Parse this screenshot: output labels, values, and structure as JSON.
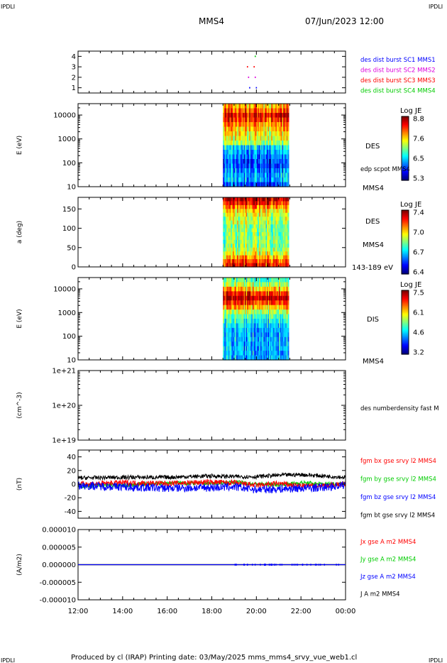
{
  "header": {
    "corner_tl": "IPDLI",
    "corner_tr": "IPDLI",
    "corner_bl": "IPDLI",
    "corner_br": "IPDLI",
    "title": "MMS4",
    "datetime": "07/Jun/2023 12:00"
  },
  "footer": {
    "text": "Produced by cl (IRAP)   Printing date: 03/May/2025   mms_mms4_srvy_vue_web1.cl"
  },
  "colors": {
    "mms1": "#0000ff",
    "mms2": "#dd00dd",
    "mms3": "#ff0000",
    "mms4": "#00cc00",
    "black": "#000000"
  },
  "chart_data": [
    {
      "type": "scatter",
      "panel": "burst availability",
      "ylabel": "",
      "yticks": [
        "1",
        "2",
        "3",
        "4"
      ],
      "ylim": [
        0.5,
        4.5
      ],
      "legend": [
        {
          "label": "des dist burst SC1 MMS1",
          "color": "#0000ff"
        },
        {
          "label": "des dist burst SC2 MMS2",
          "color": "#dd00dd"
        },
        {
          "label": "des dist burst SC3 MMS3",
          "color": "#ff0000"
        },
        {
          "label": "des dist burst SC4 MMS4",
          "color": "#00cc00"
        }
      ],
      "series": [
        {
          "sc": 1,
          "x": [
            19.7,
            20.0
          ]
        },
        {
          "sc": 2,
          "x": [
            19.65,
            19.95
          ]
        },
        {
          "sc": 3,
          "x": [
            19.6,
            19.9
          ]
        },
        {
          "sc": 4,
          "x": [
            19.95
          ]
        }
      ]
    },
    {
      "type": "heatmap",
      "panel": "DES energy spectrogram",
      "ylabel": "E (eV)",
      "yscale": "log",
      "ylim": [
        10,
        30000
      ],
      "yticks": [
        "10000",
        "1000",
        "100",
        "10"
      ],
      "side_labels": [
        "DES",
        "edp scpot MMS4",
        "MMS4"
      ],
      "colorbar": {
        "title": "Log JE",
        "ticks": [
          "8.8",
          "7.6",
          "6.5",
          "5.3"
        ],
        "min": 5.3,
        "max": 8.8
      },
      "time_range": [
        18.5,
        21.45
      ],
      "row_levels": [
        0.2,
        0.3,
        0.3,
        0.25,
        0.2,
        0.2,
        0.25,
        0.3,
        0.35,
        0.55,
        0.6,
        0.65,
        0.7,
        0.75,
        0.85,
        0.9,
        0.8,
        0.7
      ]
    },
    {
      "type": "heatmap",
      "panel": "DES pitch angle",
      "ylabel": "a (deg)",
      "ylim": [
        0,
        180
      ],
      "yticks": [
        "150",
        "100",
        "50",
        "0"
      ],
      "side_labels": [
        "DES",
        "MMS4",
        "143-189 eV"
      ],
      "colorbar": {
        "title": "Log JE",
        "ticks": [
          "7.4",
          "7.0",
          "6.7",
          "6.4"
        ],
        "min": 6.4,
        "max": 7.4
      },
      "time_range": [
        18.5,
        21.45
      ],
      "row_levels": [
        0.85,
        0.8,
        0.7,
        0.6,
        0.55,
        0.5,
        0.5,
        0.5,
        0.5,
        0.5,
        0.5,
        0.55,
        0.55,
        0.6,
        0.65,
        0.75,
        0.85,
        0.95
      ]
    },
    {
      "type": "heatmap",
      "panel": "DIS energy spectrogram",
      "ylabel": "E (eV)",
      "yscale": "log",
      "ylim": [
        10,
        30000
      ],
      "yticks": [
        "10000",
        "1000",
        "100",
        "10"
      ],
      "side_labels": [
        "DIS",
        "MMS4"
      ],
      "colorbar": {
        "title": "Log JE",
        "ticks": [
          "7.5",
          "6.1",
          "4.6",
          "3.2"
        ],
        "min": 3.2,
        "max": 7.5
      },
      "time_range": [
        18.5,
        21.45
      ],
      "row_levels": [
        0.3,
        0.3,
        0.3,
        0.3,
        0.3,
        0.3,
        0.3,
        0.35,
        0.4,
        0.45,
        0.55,
        0.7,
        0.85,
        0.95,
        0.85,
        0.7,
        0.55,
        0.45
      ]
    },
    {
      "type": "line",
      "panel": "electron number density",
      "ylabel": "(cm^-3)",
      "yscale": "log",
      "yticks": [
        "1e+21",
        "1e+20",
        "1e+19"
      ],
      "side_labels": [
        "des numberdensity fast M"
      ],
      "series": []
    },
    {
      "type": "line",
      "panel": "magnetic field",
      "ylabel": "(nT)",
      "ylim": [
        -50,
        50
      ],
      "yticks": [
        "40",
        "20",
        "0",
        "-20",
        "-40"
      ],
      "legend": [
        {
          "label": "fgm bx gse srvy l2 MMS4",
          "color": "#ff0000"
        },
        {
          "label": "fgm by gse srvy l2 MMS4",
          "color": "#00cc00"
        },
        {
          "label": "fgm bz gse srvy l2 MMS4",
          "color": "#0000ff"
        },
        {
          "label": "fgm bt gse srvy l2 MMS4",
          "color": "#000000"
        }
      ],
      "series": [
        {
          "name": "fgm bx gse srvy l2 MMS4",
          "x": [
            12,
            14,
            16,
            18,
            19,
            20,
            21,
            22,
            23,
            24
          ],
          "y": [
            0,
            2,
            1,
            3,
            2,
            -2,
            1,
            -3,
            -2,
            0
          ],
          "noise": 4
        },
        {
          "name": "fgm by gse srvy l2 MMS4",
          "x": [
            12,
            14,
            16,
            18,
            19,
            20,
            21,
            22,
            23,
            24
          ],
          "y": [
            -3,
            -2,
            2,
            1,
            3,
            0,
            -1,
            2,
            0,
            1
          ],
          "noise": 3
        },
        {
          "name": "fgm bz gse srvy l2 MMS4",
          "x": [
            12,
            14,
            16,
            18,
            19,
            20,
            21,
            22,
            23,
            24
          ],
          "y": [
            -2,
            -4,
            -6,
            -5,
            -4,
            -8,
            -7,
            -6,
            -5,
            -1
          ],
          "noise": 6
        },
        {
          "name": "fgm bt gse srvy l2 MMS4",
          "x": [
            12,
            14,
            16,
            18,
            19,
            20,
            21,
            22,
            23,
            24
          ],
          "y": [
            9,
            10,
            10,
            12,
            11,
            11,
            13,
            14,
            12,
            10
          ],
          "noise": 3
        }
      ]
    },
    {
      "type": "line",
      "panel": "current density",
      "ylabel": "(A/m2)",
      "ylim": [
        -1e-05,
        1e-05
      ],
      "yticks": [
        "0.000010",
        "0.000005",
        "0.000000",
        "-0.000005",
        "-0.000010"
      ],
      "xticks": [
        "12:00",
        "14:00",
        "16:00",
        "18:00",
        "20:00",
        "22:00",
        "00:00"
      ],
      "xlim": [
        12,
        24
      ],
      "legend": [
        {
          "label": "Jx gse A m2 MMS4",
          "color": "#ff0000"
        },
        {
          "label": "Jy gse A m2 MMS4",
          "color": "#00cc00"
        },
        {
          "label": "Jz gse A m2 MMS4",
          "color": "#0000ff"
        },
        {
          "label": "J A m2 MMS4",
          "color": "#000000"
        }
      ],
      "series": [
        {
          "name": "Jx gse A m2 MMS4",
          "x": [
            12,
            24
          ],
          "y": [
            0,
            0
          ]
        },
        {
          "name": "Jy gse A m2 MMS4",
          "x": [
            12,
            24
          ],
          "y": [
            0,
            0
          ]
        },
        {
          "name": "Jz gse A m2 MMS4",
          "x": [
            12,
            24
          ],
          "y": [
            0,
            0
          ]
        },
        {
          "name": "J A m2 MMS4",
          "x": [
            12,
            24
          ],
          "y": [
            0,
            0
          ]
        }
      ]
    }
  ]
}
